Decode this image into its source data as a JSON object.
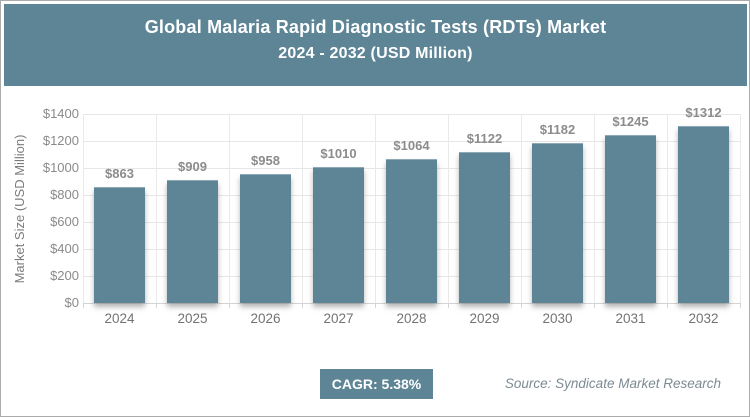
{
  "header": {
    "title_line1": "Global Malaria Rapid Diagnostic Tests (RDTs) Market",
    "title_line2": "2024 - 2032 (USD Million)"
  },
  "chart_data": {
    "type": "bar",
    "title": "Global Malaria Rapid Diagnostic Tests (RDTs) Market 2024 - 2032 (USD Million)",
    "categories": [
      "2024",
      "2025",
      "2026",
      "2027",
      "2028",
      "2029",
      "2030",
      "2031",
      "2032"
    ],
    "values": [
      863,
      909,
      958,
      1010,
      1064,
      1122,
      1182,
      1245,
      1312
    ],
    "value_prefix": "$",
    "xlabel": "",
    "ylabel": "Market Size (USD Million)",
    "ylim": [
      0,
      1400
    ],
    "ytick_step": 200,
    "grid": true,
    "legend_position": "none",
    "bar_color": "#5d8596"
  },
  "footer": {
    "cagr_label": "CAGR: 5.38%",
    "source": "Source: Syndicate Market Research"
  },
  "colors": {
    "accent": "#5d8596",
    "grid_line": "#e7e7e7",
    "axis_line": "#d4d4d4",
    "tick_text": "#8a8a8a",
    "value_label_text": "#8c8c8c",
    "header_text": "#ffffff",
    "source_text": "#7b8b92"
  }
}
